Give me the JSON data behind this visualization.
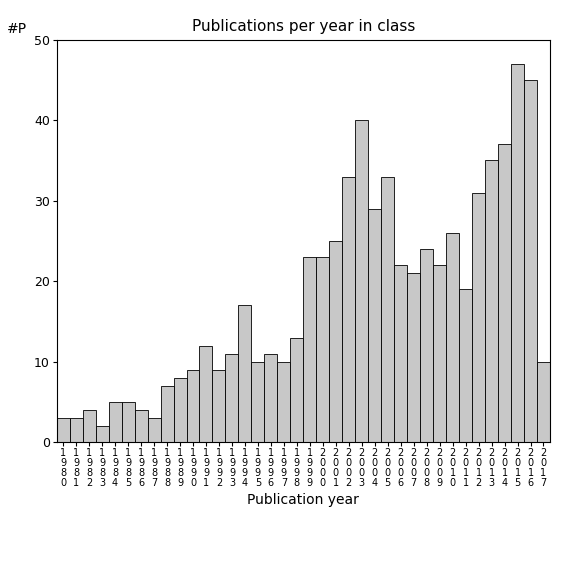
{
  "title": "Publications per year in class",
  "xlabel": "Publication year",
  "ylabel": "#P",
  "bar_color": "#c8c8c8",
  "bar_edgecolor": "#000000",
  "years": [
    1980,
    1981,
    1982,
    1983,
    1984,
    1985,
    1986,
    1987,
    1988,
    1989,
    1990,
    1991,
    1992,
    1993,
    1994,
    1995,
    1996,
    1997,
    1998,
    1999,
    2000,
    2001,
    2002,
    2003,
    2004,
    2005,
    2006,
    2007,
    2008,
    2009,
    2010,
    2011,
    2012,
    2013,
    2014,
    2015,
    2016,
    2017
  ],
  "values": [
    3,
    3,
    4,
    2,
    5,
    5,
    4,
    3,
    7,
    8,
    9,
    12,
    9,
    11,
    17,
    10,
    11,
    10,
    13,
    23,
    23,
    25,
    33,
    40,
    29,
    33,
    22,
    21,
    24,
    22,
    26,
    19,
    31,
    35,
    37,
    47,
    45,
    10
  ],
  "ylim": [
    0,
    50
  ],
  "yticks": [
    0,
    10,
    20,
    30,
    40,
    50
  ],
  "background_color": "#ffffff",
  "figsize": [
    5.67,
    5.67
  ],
  "dpi": 100
}
